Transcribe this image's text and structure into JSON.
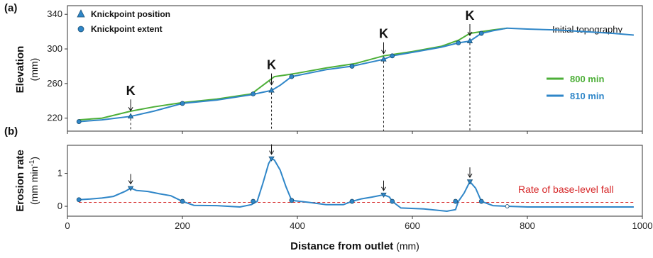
{
  "panel_a": {
    "label": "(a)",
    "ylabel": "Elevation",
    "yunit": "(mm)",
    "knick_marker_label": "K",
    "initial_topography_label": "Initial topography",
    "legend_markers": [
      {
        "label": "Knickpoint position",
        "symbol": "triangle"
      },
      {
        "label": "Knickpoint extent",
        "symbol": "circle"
      }
    ],
    "legend_lines": [
      {
        "label": "800 min",
        "color": "#4daf38"
      },
      {
        "label": "810 min",
        "color": "#2f86c8"
      }
    ]
  },
  "panel_b": {
    "label": "(b)",
    "ylabel": "Erosion rate",
    "yunit": "(mm min",
    "yunit_sup": "-1",
    "yunit_close": ")",
    "baselevel_label": "Rate of base-level fall",
    "baselevel_color": "#d62728"
  },
  "xlabel": "Distance from outlet",
  "xunit": "(mm)",
  "colors": {
    "series_800": "#4daf38",
    "series_810": "#2f86c8",
    "marker_fill": "#2f86c8",
    "marker_edge": "#1a4f73"
  },
  "chart_data": [
    {
      "type": "line",
      "panel": "a",
      "xlabel": "Distance from outlet (mm)",
      "ylabel": "Elevation (mm)",
      "xlim": [
        0,
        1000
      ],
      "ylim": [
        205,
        350
      ],
      "xticks": [
        0,
        200,
        400,
        600,
        800,
        1000
      ],
      "yticks": [
        220,
        260,
        300,
        340
      ],
      "series": [
        {
          "name": "800 min",
          "x": [
            20,
            60,
            110,
            150,
            200,
            260,
            320,
            340,
            360,
            380,
            400,
            450,
            500,
            550,
            600,
            650,
            680,
            700,
            720,
            740,
            765
          ],
          "y": [
            218,
            220,
            228,
            233,
            238,
            242,
            248,
            258,
            268,
            270,
            272,
            278,
            283,
            292,
            297,
            303,
            310,
            318,
            320,
            322,
            324
          ]
        },
        {
          "name": "810 min",
          "x": [
            20,
            60,
            110,
            150,
            200,
            260,
            320,
            340,
            355,
            370,
            390,
            420,
            450,
            495,
            550,
            565,
            600,
            650,
            680,
            700,
            720,
            740,
            765,
            800,
            850,
            900,
            950,
            985
          ],
          "y": [
            216,
            218,
            222,
            228,
            237,
            241,
            247,
            250,
            252,
            258,
            268,
            272,
            276,
            280,
            288,
            292,
            296,
            302,
            307,
            309,
            318,
            321,
            324,
            323,
            322,
            320,
            318,
            316
          ]
        }
      ],
      "knickpoint_positions": [
        {
          "x": 110,
          "y": 222
        },
        {
          "x": 355,
          "y": 252
        },
        {
          "x": 550,
          "y": 288
        },
        {
          "x": 700,
          "y": 309
        }
      ],
      "knickpoint_extent": [
        {
          "x": 20,
          "y": 216
        },
        {
          "x": 200,
          "y": 237
        },
        {
          "x": 323,
          "y": 248
        },
        {
          "x": 390,
          "y": 268
        },
        {
          "x": 495,
          "y": 280
        },
        {
          "x": 565,
          "y": 292
        },
        {
          "x": 680,
          "y": 307
        },
        {
          "x": 720,
          "y": 318
        }
      ],
      "initial_topography_x": [
        765,
        985
      ],
      "knickpoint_arrows_x": [
        110,
        355,
        550,
        700
      ]
    },
    {
      "type": "line",
      "panel": "b",
      "xlabel": "Distance from outlet (mm)",
      "ylabel": "Erosion rate (mm min-1)",
      "xlim": [
        0,
        1000
      ],
      "ylim": [
        -0.3,
        1.85
      ],
      "xticks": [
        0,
        200,
        400,
        600,
        800,
        1000
      ],
      "yticks": [
        0,
        1
      ],
      "base_level_rate": 0.12,
      "series": [
        {
          "name": "810 min",
          "x": [
            20,
            40,
            60,
            80,
            100,
            110,
            120,
            140,
            160,
            180,
            200,
            220,
            260,
            300,
            320,
            330,
            340,
            350,
            355,
            360,
            370,
            380,
            390,
            420,
            450,
            480,
            495,
            510,
            530,
            550,
            560,
            565,
            580,
            620,
            660,
            675,
            680,
            690,
            700,
            710,
            720,
            740,
            765,
            800,
            900,
            985
          ],
          "y": [
            0.2,
            0.22,
            0.25,
            0.3,
            0.45,
            0.55,
            0.48,
            0.45,
            0.38,
            0.32,
            0.15,
            0.03,
            0.02,
            -0.02,
            0.05,
            0.15,
            0.7,
            1.3,
            1.45,
            1.4,
            1.1,
            0.6,
            0.18,
            0.12,
            0.05,
            0.05,
            0.15,
            0.22,
            0.28,
            0.35,
            0.28,
            0.15,
            -0.05,
            -0.08,
            -0.15,
            -0.1,
            0.15,
            0.4,
            0.75,
            0.55,
            0.15,
            0.02,
            0.0,
            -0.02,
            -0.02,
            -0.02
          ]
        }
      ],
      "peak_markers": [
        {
          "x": 110,
          "y": 0.55
        },
        {
          "x": 355,
          "y": 1.45
        },
        {
          "x": 550,
          "y": 0.35
        },
        {
          "x": 700,
          "y": 0.75
        }
      ],
      "extent_markers": [
        {
          "x": 20,
          "y": 0.2
        },
        {
          "x": 200,
          "y": 0.15
        },
        {
          "x": 323,
          "y": 0.15
        },
        {
          "x": 390,
          "y": 0.18
        },
        {
          "x": 495,
          "y": 0.15
        },
        {
          "x": 565,
          "y": 0.15
        },
        {
          "x": 675,
          "y": 0.15
        },
        {
          "x": 720,
          "y": 0.15
        }
      ],
      "open_marker": {
        "x": 765,
        "y": 0.0
      },
      "arrows_x": [
        110,
        355,
        550,
        700
      ]
    }
  ]
}
